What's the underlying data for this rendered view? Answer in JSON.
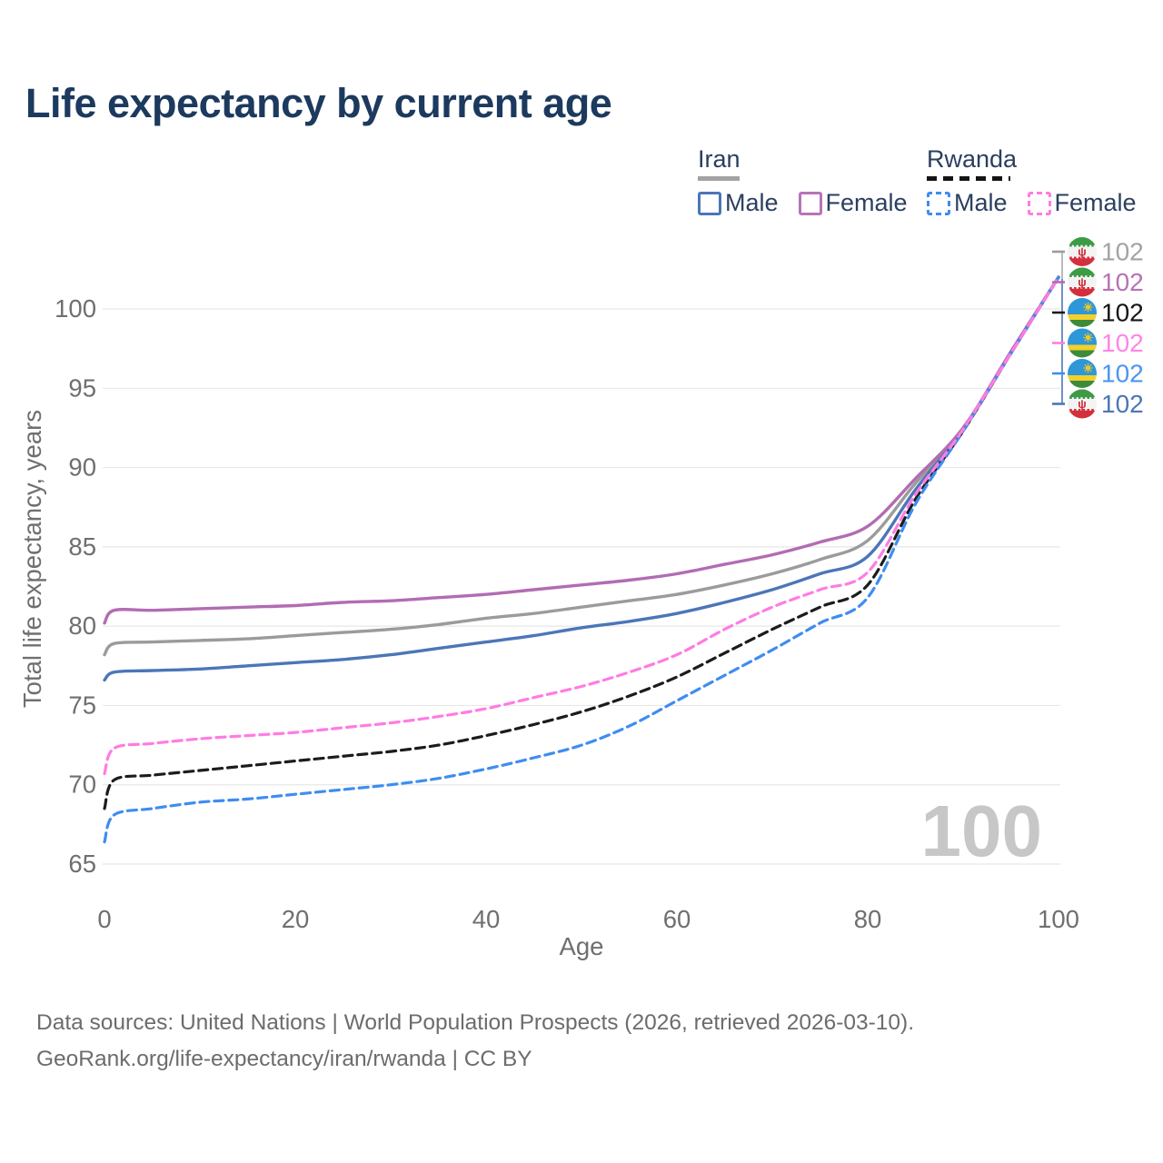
{
  "page": {
    "title": "Life expectancy by current age",
    "watermark_age": "100",
    "footer_line1": "Data sources: United Nations | World Population Prospects (2026, retrieved 2026-03-10).",
    "footer_line2": "GeoRank.org/life-expectancy/iran/rwanda | CC BY"
  },
  "legend": {
    "groups": [
      {
        "name": "Iran",
        "line_style": "solid",
        "underline_color": "#a3a3a3",
        "items": [
          {
            "label": "Male",
            "color": "#4b76b8",
            "checked": false
          },
          {
            "label": "Female",
            "color": "#b873b8",
            "checked": false
          }
        ]
      },
      {
        "name": "Rwanda",
        "line_style": "dashed",
        "underline_color": "#141414",
        "items": [
          {
            "label": "Male",
            "color": "#3e8df0",
            "checked": false
          },
          {
            "label": "Female",
            "color": "#ff7ce3",
            "checked": false
          }
        ]
      }
    ]
  },
  "chart_data": {
    "type": "line",
    "title": "Life expectancy by current age",
    "xlabel": "Age",
    "ylabel": "Total life expectancy, years",
    "xlim": [
      0,
      100
    ],
    "ylim": [
      63.5,
      103.5
    ],
    "xticks": [
      0,
      20,
      40,
      60,
      80,
      100
    ],
    "yticks": [
      65,
      70,
      75,
      80,
      85,
      90,
      95,
      100
    ],
    "grid": "horizontal-only",
    "legend_position": "top-right",
    "current_age_indicator": "100",
    "x": [
      0,
      1,
      5,
      10,
      15,
      20,
      25,
      30,
      35,
      40,
      45,
      50,
      55,
      60,
      65,
      70,
      75,
      80,
      85,
      90,
      95,
      100
    ],
    "series": [
      {
        "name": "Iran Both sexes",
        "country": "Iran",
        "sex": "both",
        "flag": "iran",
        "color": "#9b9b9b",
        "label_color": "#a3a3a3",
        "dashed": false,
        "end_label": "102",
        "label_row": 0,
        "values": [
          78.2,
          78.9,
          79.0,
          79.1,
          79.2,
          79.4,
          79.6,
          79.8,
          80.1,
          80.5,
          80.8,
          81.2,
          81.6,
          82.0,
          82.6,
          83.3,
          84.2,
          85.4,
          89.0,
          92.4,
          97.2,
          102
        ]
      },
      {
        "name": "Iran Male",
        "country": "Iran",
        "sex": "male",
        "flag": "iran",
        "color": "#4b76b8",
        "label_color": "#4b76b8",
        "dashed": false,
        "end_label": "102",
        "label_row": 5,
        "values": [
          76.6,
          77.1,
          77.2,
          77.3,
          77.5,
          77.7,
          77.9,
          78.2,
          78.6,
          79.0,
          79.4,
          79.9,
          80.3,
          80.8,
          81.5,
          82.3,
          83.3,
          84.4,
          88.6,
          92.4,
          97.2,
          102
        ]
      },
      {
        "name": "Iran Female",
        "country": "Iran",
        "sex": "female",
        "flag": "iran",
        "color": "#b26cb2",
        "label_color": "#b573b5",
        "dashed": false,
        "end_label": "102",
        "label_row": 1,
        "values": [
          80.2,
          81.0,
          81.0,
          81.1,
          81.2,
          81.3,
          81.5,
          81.6,
          81.8,
          82.0,
          82.3,
          82.6,
          82.9,
          83.3,
          83.9,
          84.5,
          85.3,
          86.3,
          89.3,
          92.5,
          97.3,
          102
        ]
      },
      {
        "name": "Rwanda Both sexes",
        "country": "Rwanda",
        "sex": "both",
        "flag": "rwanda",
        "color": "#1c1c1c",
        "label_color": "#141414",
        "dashed": true,
        "end_label": "102",
        "label_row": 2,
        "values": [
          68.5,
          70.3,
          70.6,
          70.9,
          71.2,
          71.5,
          71.8,
          72.1,
          72.5,
          73.1,
          73.8,
          74.6,
          75.6,
          76.8,
          78.3,
          79.8,
          81.2,
          82.6,
          88.0,
          92.3,
          97.2,
          102
        ]
      },
      {
        "name": "Rwanda Male",
        "country": "Rwanda",
        "sex": "male",
        "flag": "rwanda",
        "color": "#3e8df0",
        "label_color": "#4b95f0",
        "dashed": true,
        "end_label": "102",
        "label_row": 4,
        "values": [
          66.4,
          68.1,
          68.5,
          68.9,
          69.1,
          69.4,
          69.7,
          70.0,
          70.4,
          71.0,
          71.7,
          72.5,
          73.7,
          75.3,
          76.9,
          78.5,
          80.2,
          81.8,
          87.7,
          92.3,
          97.2,
          102
        ]
      },
      {
        "name": "Rwanda Female",
        "country": "Rwanda",
        "sex": "female",
        "flag": "rwanda",
        "color": "#ff7ce3",
        "label_color": "#ff85e6",
        "dashed": true,
        "end_label": "102",
        "label_row": 3,
        "values": [
          70.7,
          72.3,
          72.6,
          72.9,
          73.1,
          73.3,
          73.6,
          73.9,
          74.3,
          74.8,
          75.5,
          76.2,
          77.1,
          78.2,
          79.8,
          81.2,
          82.3,
          83.4,
          88.3,
          92.4,
          97.2,
          102
        ]
      }
    ]
  }
}
